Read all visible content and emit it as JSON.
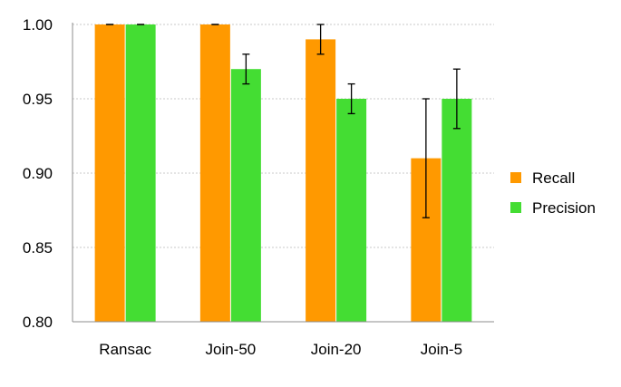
{
  "chart_data": {
    "type": "bar",
    "categories": [
      "Ransac",
      "Join-50",
      "Join-20",
      "Join-5"
    ],
    "series": [
      {
        "name": "Recall",
        "color": "#FF9900",
        "values": [
          1.0,
          1.0,
          0.99,
          0.91
        ],
        "error": [
          0,
          0,
          0.01,
          0.04
        ]
      },
      {
        "name": "Precision",
        "color": "#44DD33",
        "values": [
          1.0,
          0.97,
          0.95,
          0.95
        ],
        "error": [
          0,
          0.01,
          0.01,
          0.02
        ]
      }
    ],
    "ylim": [
      0.8,
      1.0
    ],
    "yticks": [
      "0.80",
      "0.85",
      "0.90",
      "0.95",
      "1.00"
    ],
    "grid": true,
    "legend": "right",
    "title": "",
    "xlabel": "",
    "ylabel": ""
  }
}
